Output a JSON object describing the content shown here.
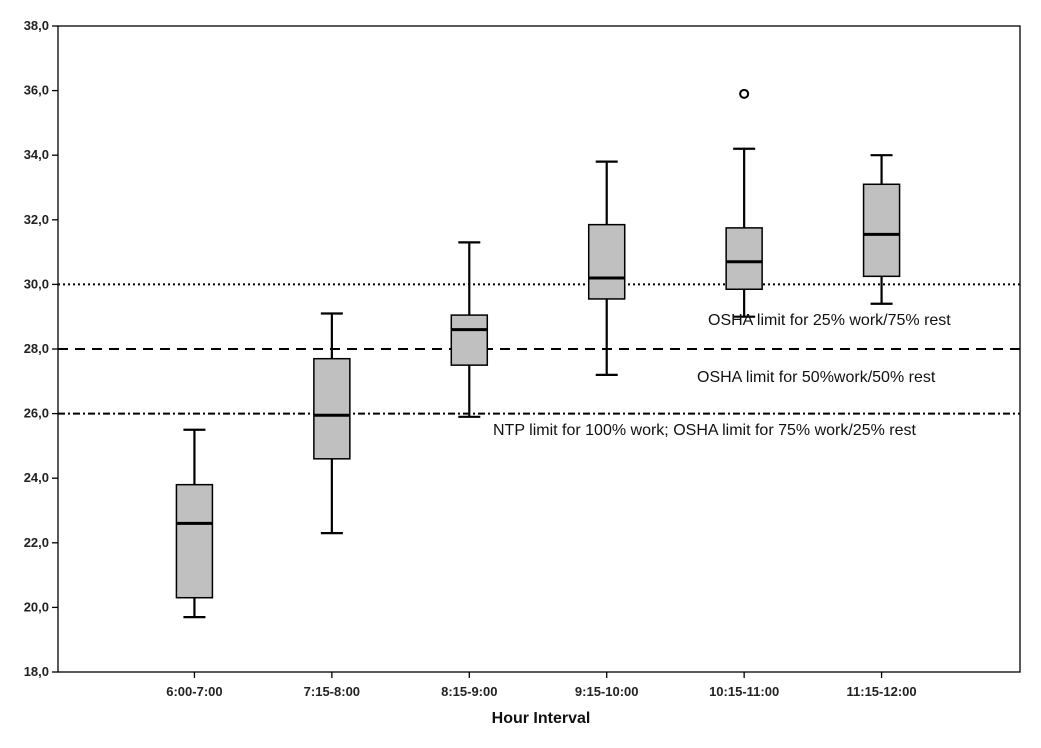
{
  "chart_data": {
    "type": "box",
    "title": "",
    "xlabel": "Hour Interval",
    "ylabel": "",
    "ylim": [
      18.0,
      38.0
    ],
    "yticks": [
      "18,0",
      "20,0",
      "22,0",
      "24,0",
      "26,0",
      "28,0",
      "30,0",
      "32,0",
      "34,0",
      "36,0",
      "38,0"
    ],
    "categories": [
      "6:00-7:00",
      "7:15-8:00",
      "8:15-9:00",
      "9:15-10:00",
      "10:15-11:00",
      "11:15-12:00"
    ],
    "boxes": [
      {
        "min": 19.7,
        "q1": 20.3,
        "median": 22.6,
        "q3": 23.8,
        "max": 25.5,
        "outliers": []
      },
      {
        "min": 22.3,
        "q1": 24.6,
        "median": 25.95,
        "q3": 27.7,
        "max": 29.1,
        "outliers": []
      },
      {
        "min": 25.9,
        "q1": 27.5,
        "median": 28.6,
        "q3": 29.05,
        "max": 31.3,
        "outliers": []
      },
      {
        "min": 27.2,
        "q1": 29.55,
        "median": 30.2,
        "q3": 31.85,
        "max": 33.8,
        "outliers": []
      },
      {
        "min": 29.0,
        "q1": 29.85,
        "median": 30.7,
        "q3": 31.75,
        "max": 34.2,
        "outliers": [
          35.9
        ]
      },
      {
        "min": 29.4,
        "q1": 30.25,
        "median": 31.55,
        "q3": 33.1,
        "max": 34.0,
        "outliers": []
      }
    ],
    "reference_lines": [
      {
        "y": 30.0,
        "style": "dotted",
        "label": "OSHA limit for 25% work/75% rest"
      },
      {
        "y": 28.0,
        "style": "dashed",
        "label": "OSHA limit for 50%work/50% rest"
      },
      {
        "y": 26.0,
        "style": "dash-dot",
        "label": "NTP limit for 100% work; OSHA limit for 75% work/25% rest"
      }
    ],
    "grid": false,
    "colors": {
      "box_fill": "#c0c0c0",
      "stroke": "#000000"
    }
  }
}
